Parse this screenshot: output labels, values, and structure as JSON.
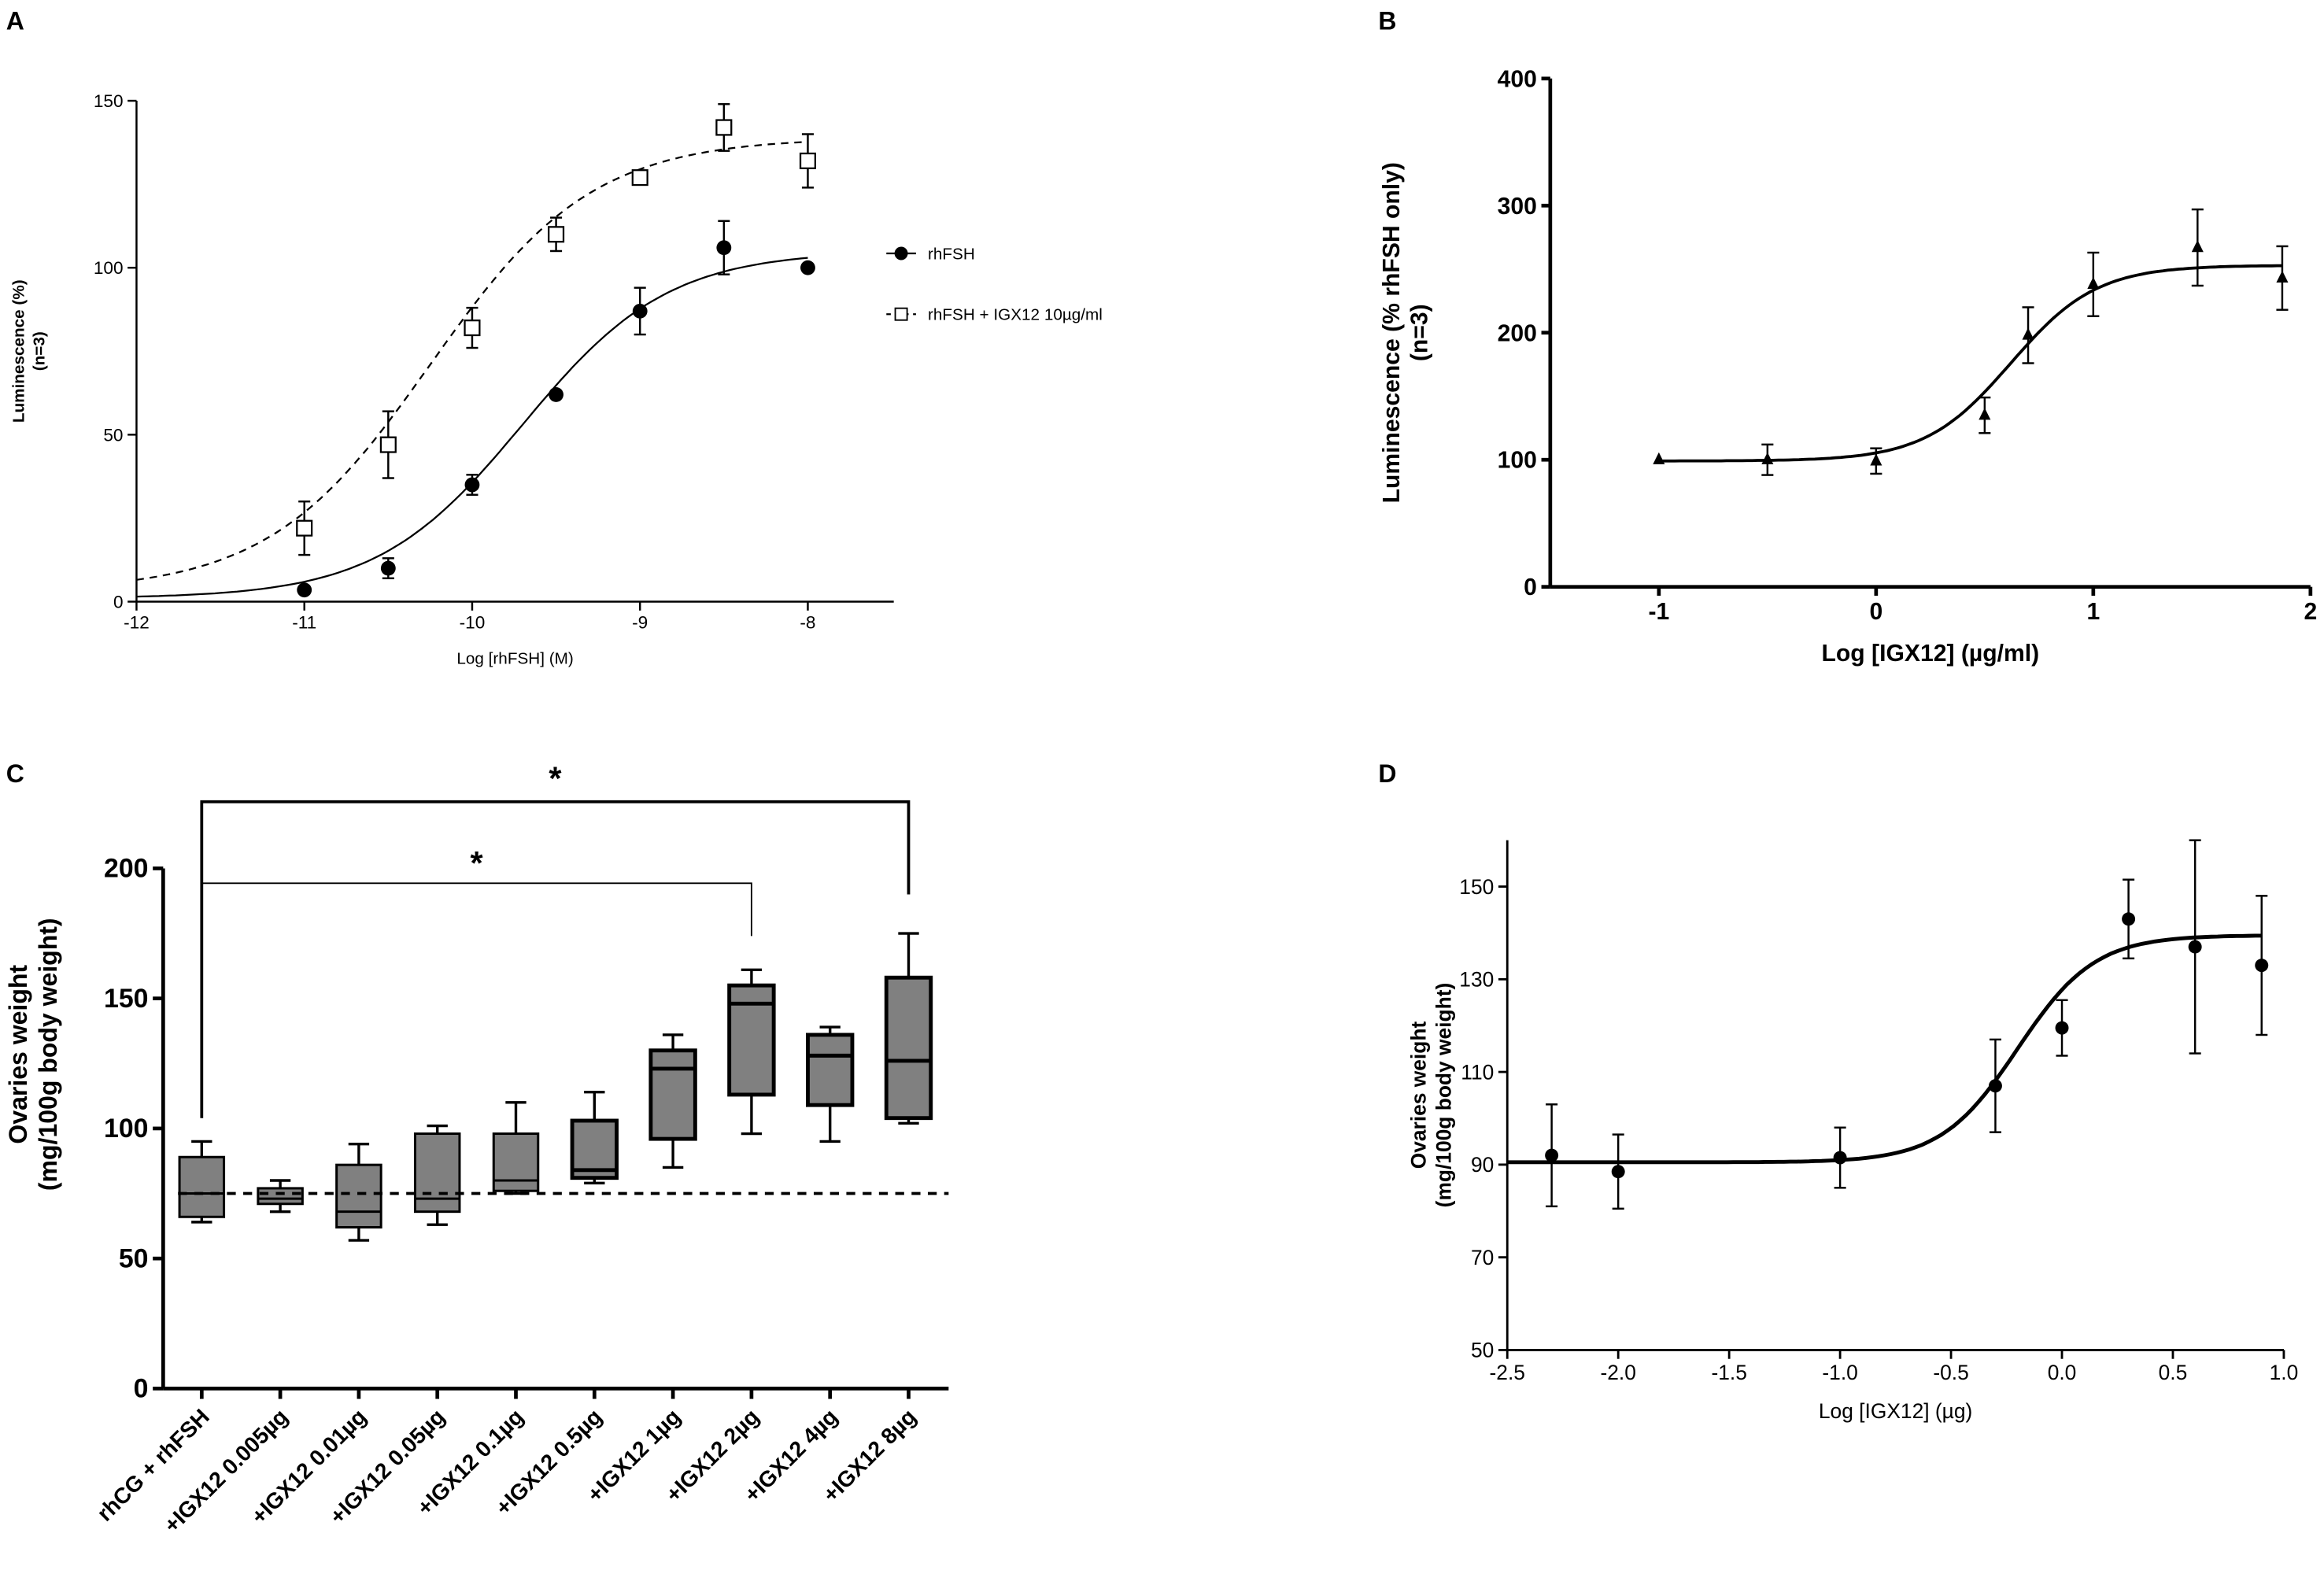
{
  "panel_labels": [
    "A",
    "B",
    "C",
    "D"
  ],
  "chart_data": [
    {
      "type": "scatter",
      "panel": "A",
      "xlabel": "Log [rhFSH] (M)",
      "ylabel": "Luminescence (%)",
      "ylabel2": "(n=3)",
      "xlim": [
        -12,
        -8
      ],
      "ylim": [
        0,
        150
      ],
      "xticks": [
        "-12",
        "-11",
        "-10",
        "-9",
        "-8"
      ],
      "yticks": [
        "0",
        "50",
        "100",
        "150"
      ],
      "legend_position": "right",
      "series": [
        {
          "name": "rhFSH",
          "marker": "filled-circle",
          "line": "solid",
          "x": [
            -11,
            -10.5,
            -10,
            -9.5,
            -9,
            -8.5,
            -8
          ],
          "y": [
            3.5,
            10,
            35,
            62,
            87,
            106,
            100
          ],
          "err": [
            1,
            3,
            3,
            1,
            7,
            8,
            0
          ],
          "fit": {
            "bottom": 1,
            "top": 105,
            "logEC50": -9.7,
            "hill": 1
          }
        },
        {
          "name": "rhFSH + IGX12 10µg/ml",
          "marker": "open-square",
          "line": "dashed",
          "x": [
            -11,
            -10.5,
            -10,
            -9.5,
            -9,
            -8.5,
            -8
          ],
          "y": [
            22,
            47,
            82,
            110,
            127,
            142,
            132
          ],
          "err": [
            8,
            10,
            6,
            5,
            1,
            7,
            8
          ],
          "fit": {
            "bottom": 3,
            "top": 139,
            "logEC50": -10.25,
            "hill": 0.9
          }
        }
      ]
    },
    {
      "type": "scatter",
      "panel": "B",
      "xlabel": "Log [IGX12] (µg/ml)",
      "ylabel": "Luminescence (% rhFSH only)",
      "ylabel2": "(n=3)",
      "xlim": [
        -1.5,
        2
      ],
      "ylim": [
        0,
        400
      ],
      "xticks": [
        "-1",
        "0",
        "1",
        "2"
      ],
      "yticks": [
        "0",
        "100",
        "200",
        "300",
        "400"
      ],
      "series": [
        {
          "name": "IGX12",
          "marker": "filled-triangle",
          "x": [
            -1,
            -0.5,
            0,
            0.5,
            0.7,
            1,
            1.48,
            1.87
          ],
          "y": [
            100,
            100,
            99,
            135,
            198,
            238,
            267,
            243
          ],
          "err": [
            0,
            12,
            10,
            14,
            22,
            25,
            30,
            25
          ],
          "fit": {
            "bottom": 99,
            "top": 253,
            "logEC50": 0.62,
            "hill": 2.2
          }
        }
      ]
    },
    {
      "type": "box",
      "panel": "C",
      "ylabel": "Ovaries weight",
      "ylabel2": "(mg/100g body weight)",
      "ylim": [
        0,
        200
      ],
      "yticks": [
        "0",
        "50",
        "100",
        "150",
        "200"
      ],
      "reference_line": 75,
      "categories": [
        "rhCG + rhFSH",
        "+IGX12 0.005µg",
        "+IGX12 0.01µg",
        "+IGX12 0.05µg",
        "+IGX12 0.1µg",
        "+IGX12 0.5µg",
        "+IGX12 1µg",
        "+IGX12 2µg",
        "+IGX12 4µg",
        "+IGX12 8µg"
      ],
      "boxes": [
        [
          64,
          66,
          75,
          89,
          95
        ],
        [
          68,
          71,
          73,
          77,
          80
        ],
        [
          57,
          62,
          68,
          86,
          94
        ],
        [
          63,
          68,
          73,
          98,
          101
        ],
        [
          75,
          76,
          80,
          98,
          110
        ],
        [
          79,
          81,
          84,
          103,
          114
        ],
        [
          85,
          96,
          123,
          130,
          136
        ],
        [
          98,
          113,
          148,
          155,
          161
        ],
        [
          95,
          109,
          128,
          136,
          139
        ],
        [
          102,
          104,
          126,
          158,
          175
        ]
      ],
      "significance": [
        {
          "from": 0,
          "to": 7,
          "label": "*"
        },
        {
          "from": 0,
          "to": 9,
          "label": "*"
        }
      ]
    },
    {
      "type": "scatter",
      "panel": "D",
      "xlabel": "Log [IGX12] (µg)",
      "ylabel": "Ovaries weight",
      "ylabel2": "(mg/100g body weight)",
      "xlim": [
        -2.5,
        1.0
      ],
      "ylim": [
        50,
        160
      ],
      "xticks": [
        "-2.5",
        "-2.0",
        "-1.5",
        "-1.0",
        "-0.5",
        "0.0",
        "0.5",
        "1.0"
      ],
      "yticks": [
        "50",
        "70",
        "90",
        "110",
        "130",
        "150"
      ],
      "series": [
        {
          "name": "IGX12",
          "marker": "filled-circle",
          "x": [
            -2.3,
            -2,
            -1,
            -0.3,
            0,
            0.3,
            0.6,
            0.9
          ],
          "y": [
            92,
            88.5,
            91.5,
            107,
            119.5,
            143,
            137,
            133
          ],
          "err": [
            11,
            8,
            6.5,
            10,
            6,
            8.5,
            23,
            15
          ],
          "fit": {
            "bottom": 90.5,
            "top": 139.5,
            "logEC50": -0.2,
            "hill": 2.5
          }
        }
      ]
    }
  ]
}
